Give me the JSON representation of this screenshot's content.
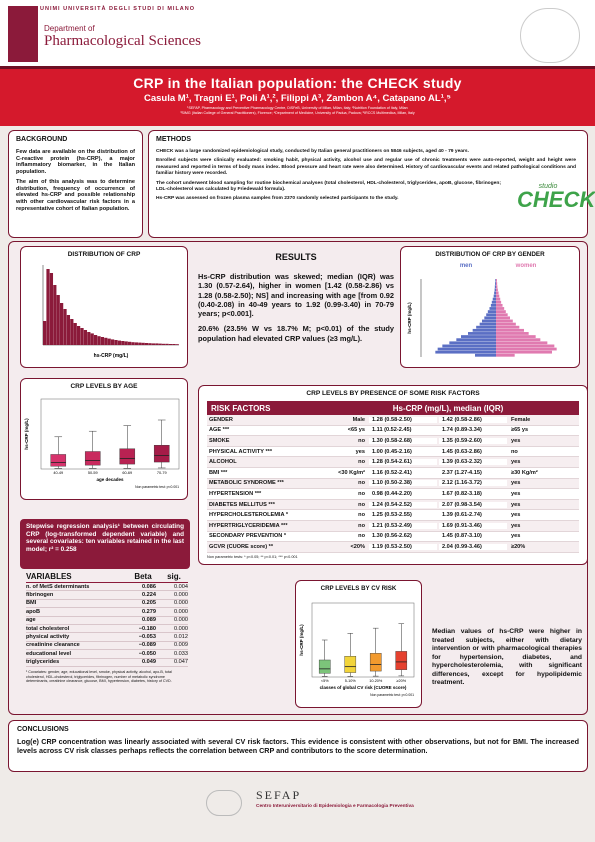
{
  "header": {
    "university": "UNIMI UNIVERSITÀ DEGLI STUDI DI MILANO",
    "department_small": "Department of",
    "department_large": "Pharmacological Sciences",
    "title": "CRP in the Italian population: the CHECK study",
    "authors": "Casula M¹, Tragni E¹, Poli A¹,², Filippi A³, Zambon A⁴, Catapano AL¹,⁵",
    "affiliations": [
      "¹SEFAP, Pharmacology and Preventive Pharmacology Centre, DiSFeB, University of Milan, Milan, Italy; ²Nutrition Foundation of Italy, Milan",
      "³SIMG (Italian College of General Practitioners), Florence; ⁴Department of Medicine, University of Padua, Padova; ⁵IRCCS Multimedica, Milan, Italy"
    ]
  },
  "background": {
    "heading": "BACKGROUND",
    "paragraphs": [
      "Few data are available on the distribution of C-reactive protein (hs-CRP), a major inflammatory biomarker, in the Italian population.",
      "The aim of this analysis was to determine distribution, frequency of occurrence of elevated hs-CRP and possible relationship with other cardiovascular risk factors in a representative cohort of Italian population."
    ]
  },
  "methods": {
    "heading": "METHODS",
    "paragraphs": [
      "CHECK was a large randomized epidemiological study, conducted by Italian general practitioners on 5846 subjects, aged 40 - 79 years.",
      "Enrolled subjects were clinically evaluated: smoking habit, physical activity, alcohol use and regular use of chronic treatments were auto-reported, weight and height were measured and reported in terms of body mass index. Blood pressure and heart rate were also determined. History of cardiovascular events and related pathological conditions and familiar history were recorded.",
      "The cohort underwent blood sampling for routine biochemical analyses (total cholesterol, HDL-cholesterol, triglycerides, apoB, glucose, fibrinogen; LDL-cholesterol was calculated by Friedewald formula).",
      "Hs-CRP was assessed on frozen plasma samples from 2370 randomly selected participants to the study."
    ],
    "logo_small": "studio",
    "logo_large": "CHECK"
  },
  "results": {
    "heading": "RESULTS",
    "paragraphs": [
      "Hs-CRP distribution was skewed; median (IQR) was 1.30 (0.57-2.64), higher in women [1.42 (0.58-2.86) vs 1.28 (0.58-2.50); NS] and increasing with age [from 0.92 (0.40-2.08) in 40-49 years to 1.92 (0.99-3.40) in 70-79 years; p<0.001].",
      "20.6% (23.5% W vs 18.7% M; p<0.01) of the study population had elevated CRP values (≥3 mg/L)."
    ]
  },
  "histogram": {
    "title": "DISTRIBUTION OF CRP",
    "x_label": "hs-CRP (mg/L)",
    "color": "#8b1a3a",
    "ylim": [
      0,
      400
    ],
    "values": [
      120,
      380,
      360,
      300,
      250,
      210,
      180,
      150,
      130,
      110,
      95,
      85,
      75,
      65,
      58,
      50,
      44,
      40,
      36,
      32,
      28,
      25,
      22,
      20,
      18,
      16,
      14,
      13,
      12,
      11,
      10,
      9,
      8,
      8,
      7,
      6,
      6,
      5,
      5,
      4
    ]
  },
  "pyramid": {
    "title": "DISTRIBUTION OF CRP BY GENDER",
    "y_label": "hs-CRP (mg/L)",
    "xlim": [
      0,
      300
    ],
    "series": [
      {
        "name": "men",
        "color": "#5b6fc4",
        "values": [
          90,
          260,
          250,
          230,
          200,
          170,
          150,
          120,
          100,
          85,
          70,
          60,
          50,
          42,
          35,
          28,
          22,
          18,
          14,
          10,
          8,
          6,
          5,
          4,
          3
        ]
      },
      {
        "name": "women",
        "color": "#e07ab0",
        "values": [
          80,
          240,
          260,
          250,
          220,
          190,
          170,
          140,
          120,
          100,
          85,
          72,
          60,
          50,
          42,
          35,
          28,
          22,
          18,
          14,
          11,
          8,
          6,
          5,
          4
        ]
      }
    ]
  },
  "age_box": {
    "title": "CRP LEVELS BY AGE",
    "y_label": "hs-CRP (mg/L)",
    "x_label": "age decades",
    "note": "Non parametric test: p<0.001",
    "ylim": [
      0,
      10
    ],
    "boxes": [
      {
        "category": "40-49",
        "color": "#d6336c",
        "low": 0.1,
        "q1": 0.4,
        "median": 0.92,
        "q3": 2.08,
        "high": 4.6
      },
      {
        "category": "50-59",
        "color": "#c92a5e",
        "low": 0.1,
        "q1": 0.55,
        "median": 1.2,
        "q3": 2.5,
        "high": 5.4
      },
      {
        "category": "60-69",
        "color": "#b82252",
        "low": 0.1,
        "q1": 0.7,
        "median": 1.5,
        "q3": 2.9,
        "high": 6.2
      },
      {
        "category": "70-79",
        "color": "#a51c48",
        "low": 0.15,
        "q1": 0.99,
        "median": 1.92,
        "q3": 3.4,
        "high": 7.0
      }
    ]
  },
  "cv_box": {
    "title": "CRP LEVELS BY CV RISK",
    "y_label": "hs-CRP (mg/L)",
    "x_label": "classes of global CV risk (CUORE score)",
    "note": "Non parametric test: p<0.001",
    "ylim": [
      0,
      10
    ],
    "boxes": [
      {
        "category": "<5%",
        "color": "#7cc47a",
        "low": 0.1,
        "q1": 0.5,
        "median": 1.1,
        "q3": 2.3,
        "high": 5.0
      },
      {
        "category": "5-10%",
        "color": "#f2d43a",
        "low": 0.1,
        "q1": 0.6,
        "median": 1.4,
        "q3": 2.8,
        "high": 5.9
      },
      {
        "category": "10-20%",
        "color": "#f29a2e",
        "low": 0.12,
        "q1": 0.8,
        "median": 1.7,
        "q3": 3.2,
        "high": 6.6
      },
      {
        "category": "≥20%",
        "color": "#e5412f",
        "low": 0.15,
        "q1": 0.99,
        "median": 2.04,
        "q3": 3.46,
        "high": 7.2
      }
    ]
  },
  "risk_table": {
    "title": "CRP LEVELS BY PRESENCE OF SOME RISK FACTORS",
    "header": [
      "RISK FACTORS",
      "Hs-CRP (mg/L), median (IQR)"
    ],
    "rows": [
      [
        "GENDER",
        "Male",
        "1.28 (0.58-2.50)",
        "1.42 (0.58-2.86)",
        "Female"
      ],
      [
        "AGE ***",
        "<65 ys",
        "1.11 (0.52-2.45)",
        "1.74 (0.89-3.34)",
        "≥65 ys"
      ],
      [
        "SMOKE",
        "no",
        "1.30 (0.58-2.68)",
        "1.35 (0.59-2.60)",
        "yes"
      ],
      [
        "PHYSICAL ACTIVITY ***",
        "yes",
        "1.00 (0.45-2.16)",
        "1.45 (0.63-2.86)",
        "no"
      ],
      [
        "ALCOHOL",
        "no",
        "1.28 (0.54-2.61)",
        "1.39 (0.63-2.32)",
        "yes"
      ],
      [
        "BMI ***",
        "<30 Kg/m²",
        "1.16 (0.52-2.41)",
        "2.37 (1.27-4.15)",
        "≥30 Kg/m²"
      ],
      [
        "METABOLIC SYNDROME ***",
        "no",
        "1.10 (0.50-2.38)",
        "2.12 (1.16-3.72)",
        "yes"
      ],
      [
        "HYPERTENSION ***",
        "no",
        "0.98 (0.44-2.20)",
        "1.67 (0.82-3.18)",
        "yes"
      ],
      [
        "DIABETES MELLITUS ***",
        "no",
        "1.24 (0.54-2.52)",
        "2.07 (0.98-3.54)",
        "yes"
      ],
      [
        "HYPERCHOLESTEROLEMIA *",
        "no",
        "1.25 (0.53-2.55)",
        "1.39 (0.61-2.74)",
        "yes"
      ],
      [
        "HYPERTRIGLYCERIDEMIA ***",
        "no",
        "1.21 (0.53-2.49)",
        "1.69 (0.91-3.46)",
        "yes"
      ],
      [
        "SECONDARY PREVENTION *",
        "no",
        "1.30 (0.56-2.62)",
        "1.45 (0.87-3.10)",
        "yes"
      ],
      [
        "GCVR (CUORE score) **",
        "<20%",
        "1.19 (0.53-2.50)",
        "2.04 (0.99-3.46)",
        "≥20%"
      ]
    ],
    "footnote": "Non parametric tests: * p<0.05; ** p<0.01; *** p<0.001"
  },
  "stepwise": "Stepwise regression analysis¹ between circulating CRP (log-transformed dependent variable) and several covariates: ten variables retained in the last model; r² = 0.258",
  "variables_table": {
    "header": [
      "VARIABLES",
      "Beta",
      "sig."
    ],
    "rows": [
      [
        "n. of MetS determinants",
        "0.086",
        "0.004"
      ],
      [
        "fibrinogen",
        "0.224",
        "0.000"
      ],
      [
        "BMI",
        "0.205",
        "0.000"
      ],
      [
        "apoB",
        "0.279",
        "0.000"
      ],
      [
        "age",
        "0.089",
        "0.000"
      ],
      [
        "total cholesterol",
        "−0.180",
        "0.000"
      ],
      [
        "physical activity",
        "−0.053",
        "0.012"
      ],
      [
        "creatinine clearance",
        "−0.089",
        "0.009"
      ],
      [
        "educational level",
        "−0.050",
        "0.033"
      ],
      [
        "triglycerides",
        "0.049",
        "0.047"
      ]
    ],
    "footnote": "¹ Covariates: gender, age, educational level, smoke, physical activity, alcohol, apo-B, total cholesterol, HDL-cholesterol, triglycerides, fibrinogen, number of metabolic syndrome determinants, creatinine clearance, glucose, BMI, hypertension, diabetes, history of CVD."
  },
  "treatment_text": "Median values of hs-CRP were higher in treated subjects, either with dietary intervention or with pharmacological therapies for hypertension, diabetes, and hypercholesterolemia, with significant differences, except for hypolipidemic treatment.",
  "conclusions": {
    "heading": "CONCLUSIONS",
    "text": "Log(e) CRP concentration was linearly associated with several CV risk factors. This evidence is consistent with other observations, but not for BMI. The increased levels across CV risk classes perhaps reflects the correlation between CRP and contributors to the score determination."
  },
  "footer": {
    "name": "SEFAP",
    "subtitle": "Centro Interuniversitario di Epidemiologia e Farmacologia Preventiva"
  }
}
